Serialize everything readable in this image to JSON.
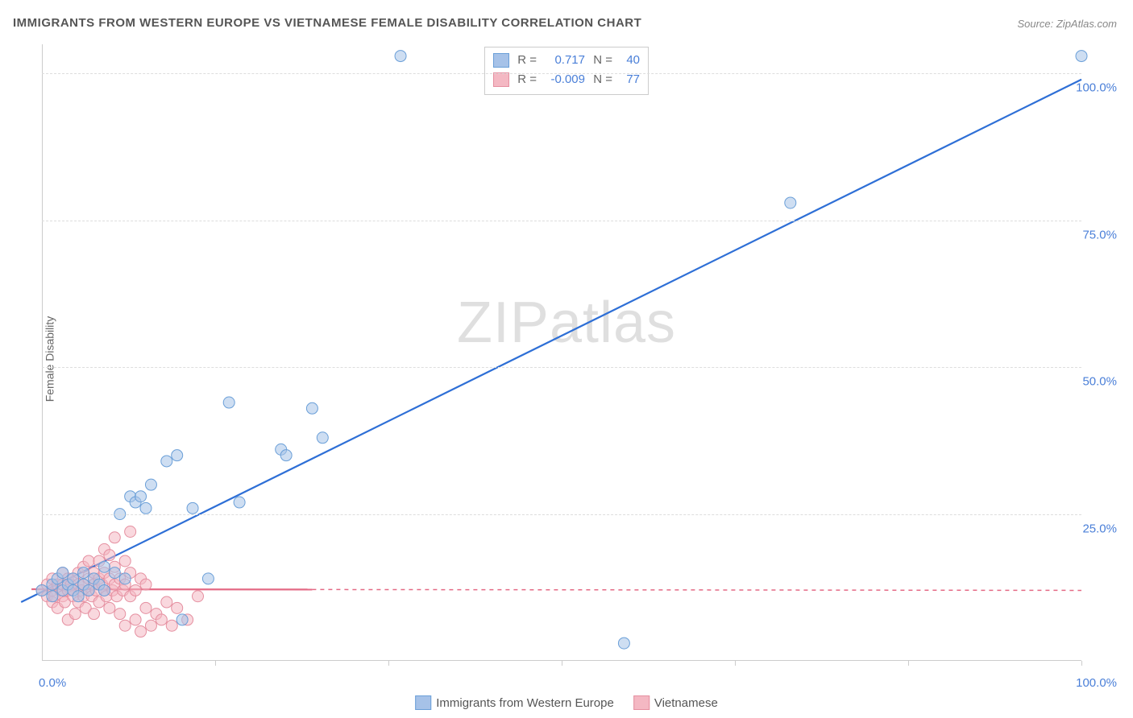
{
  "title": "IMMIGRANTS FROM WESTERN EUROPE VS VIETNAMESE FEMALE DISABILITY CORRELATION CHART",
  "source": "Source: ZipAtlas.com",
  "watermark": "ZIPatlas",
  "ylabel": "Female Disability",
  "chart": {
    "type": "scatter",
    "background_color": "#ffffff",
    "grid_color": "#dddddd",
    "xlim": [
      0,
      100
    ],
    "ylim": [
      0,
      105
    ],
    "xtick_labels": {
      "0": "0.0%",
      "100": "100.0%"
    },
    "ytick_positions": [
      25,
      50,
      75,
      100
    ],
    "ytick_labels": [
      "25.0%",
      "50.0%",
      "75.0%",
      "100.0%"
    ],
    "xtick_minor": [
      16.67,
      33.33,
      50,
      66.67,
      83.33,
      100
    ],
    "marker_radius": 7,
    "marker_opacity": 0.55,
    "series": [
      {
        "name": "Immigrants from Western Europe",
        "color_fill": "#a6c2e8",
        "color_stroke": "#6a9fd8",
        "line_color": "#2e6fd6",
        "line_width": 2.2,
        "R": "0.717",
        "N": "40",
        "trend": {
          "x1": -2,
          "y1": 10,
          "x2": 100,
          "y2": 99
        },
        "points": [
          [
            0,
            12
          ],
          [
            1,
            11
          ],
          [
            1,
            13
          ],
          [
            1.5,
            14
          ],
          [
            2,
            12
          ],
          [
            2,
            15
          ],
          [
            2.5,
            13
          ],
          [
            3,
            12
          ],
          [
            3,
            14
          ],
          [
            3.5,
            11
          ],
          [
            4,
            15
          ],
          [
            4,
            13
          ],
          [
            4.5,
            12
          ],
          [
            5,
            14
          ],
          [
            5.5,
            13
          ],
          [
            6,
            16
          ],
          [
            6,
            12
          ],
          [
            7,
            15
          ],
          [
            7.5,
            25
          ],
          [
            8,
            14
          ],
          [
            8.5,
            28
          ],
          [
            9,
            27
          ],
          [
            9.5,
            28
          ],
          [
            10,
            26
          ],
          [
            10.5,
            30
          ],
          [
            12,
            34
          ],
          [
            13,
            35
          ],
          [
            13.5,
            7
          ],
          [
            14.5,
            26
          ],
          [
            16,
            14
          ],
          [
            18,
            44
          ],
          [
            19,
            27
          ],
          [
            23,
            36
          ],
          [
            23.5,
            35
          ],
          [
            26,
            43
          ],
          [
            27,
            38
          ],
          [
            34.5,
            103
          ],
          [
            56,
            3
          ],
          [
            72,
            78
          ],
          [
            100,
            103
          ]
        ]
      },
      {
        "name": "Vietnamese",
        "color_fill": "#f4b8c3",
        "color_stroke": "#e58fa0",
        "line_color": "#e46a85",
        "line_solid_xmax": 26,
        "line_width": 2.2,
        "R": "-0.009",
        "N": "77",
        "trend": {
          "x1": -1,
          "y1": 12.2,
          "x2": 100,
          "y2": 12
        },
        "points": [
          [
            0,
            12
          ],
          [
            0.5,
            11
          ],
          [
            0.5,
            13
          ],
          [
            1,
            10
          ],
          [
            1,
            12
          ],
          [
            1,
            14
          ],
          [
            1.2,
            11
          ],
          [
            1.5,
            13
          ],
          [
            1.5,
            9
          ],
          [
            1.8,
            12
          ],
          [
            2,
            11
          ],
          [
            2,
            13
          ],
          [
            2,
            15
          ],
          [
            2.2,
            10
          ],
          [
            2.5,
            12
          ],
          [
            2.5,
            14
          ],
          [
            2.5,
            7
          ],
          [
            2.8,
            13
          ],
          [
            3,
            11
          ],
          [
            3,
            12
          ],
          [
            3,
            14
          ],
          [
            3.2,
            8
          ],
          [
            3.5,
            13
          ],
          [
            3.5,
            10
          ],
          [
            3.5,
            15
          ],
          [
            3.8,
            12
          ],
          [
            4,
            11
          ],
          [
            4,
            13
          ],
          [
            4,
            16
          ],
          [
            4.2,
            9
          ],
          [
            4.5,
            12
          ],
          [
            4.5,
            14
          ],
          [
            4.5,
            17
          ],
          [
            4.8,
            11
          ],
          [
            5,
            13
          ],
          [
            5,
            15
          ],
          [
            5,
            8
          ],
          [
            5.2,
            12
          ],
          [
            5.5,
            14
          ],
          [
            5.5,
            10
          ],
          [
            5.5,
            17
          ],
          [
            5.8,
            13
          ],
          [
            6,
            12
          ],
          [
            6,
            15
          ],
          [
            6,
            19
          ],
          [
            6.2,
            11
          ],
          [
            6.5,
            14
          ],
          [
            6.5,
            9
          ],
          [
            6.5,
            18
          ],
          [
            6.8,
            12
          ],
          [
            7,
            13
          ],
          [
            7,
            16
          ],
          [
            7,
            21
          ],
          [
            7.2,
            11
          ],
          [
            7.5,
            14
          ],
          [
            7.5,
            8
          ],
          [
            7.8,
            12
          ],
          [
            8,
            13
          ],
          [
            8,
            17
          ],
          [
            8,
            6
          ],
          [
            8.5,
            11
          ],
          [
            8.5,
            15
          ],
          [
            8.5,
            22
          ],
          [
            9,
            12
          ],
          [
            9,
            7
          ],
          [
            9.5,
            14
          ],
          [
            9.5,
            5
          ],
          [
            10,
            13
          ],
          [
            10,
            9
          ],
          [
            10.5,
            6
          ],
          [
            11,
            8
          ],
          [
            11.5,
            7
          ],
          [
            12,
            10
          ],
          [
            12.5,
            6
          ],
          [
            13,
            9
          ],
          [
            14,
            7
          ],
          [
            15,
            11
          ]
        ]
      }
    ]
  },
  "legend_bottom": [
    {
      "swatch_fill": "#a6c2e8",
      "swatch_stroke": "#6a9fd8",
      "label": "Immigrants from Western Europe"
    },
    {
      "swatch_fill": "#f4b8c3",
      "swatch_stroke": "#e58fa0",
      "label": "Vietnamese"
    }
  ],
  "legend_top": [
    {
      "swatch_fill": "#a6c2e8",
      "swatch_stroke": "#6a9fd8",
      "r_label": "R =",
      "r_val": "0.717",
      "n_label": "N =",
      "n_val": "40"
    },
    {
      "swatch_fill": "#f4b8c3",
      "swatch_stroke": "#e58fa0",
      "r_label": "R =",
      "r_val": "-0.009",
      "n_label": "N =",
      "n_val": "77"
    }
  ]
}
